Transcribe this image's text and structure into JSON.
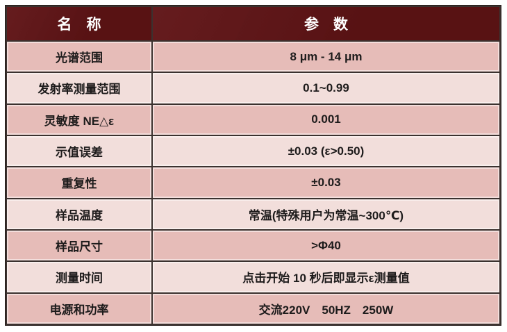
{
  "table": {
    "columns": [
      {
        "label": "名　称"
      },
      {
        "label": "参　数"
      }
    ],
    "rows": [
      {
        "name": "光谱范围",
        "value": "8 μm - 14 μm"
      },
      {
        "name": "发射率测量范围",
        "value": "0.1~0.99"
      },
      {
        "name": "灵敏度 NE△ε",
        "value": "0.001"
      },
      {
        "name": "示值误差",
        "value": "±0.03 (ε>0.50)"
      },
      {
        "name": "重复性",
        "value": "±0.03"
      },
      {
        "name": "样品温度",
        "value": "常温(特殊用户为常温~300℃)"
      },
      {
        "name": "样品尺寸",
        "value": ">Φ40"
      },
      {
        "name": "测量时间",
        "value": "点击开始 10 秒后即显示ε测量值"
      },
      {
        "name": "电源和功率",
        "value": "交流220V　50HZ　250W"
      }
    ],
    "colors": {
      "header_bg": "#5f1315",
      "header_text": "#ffffff",
      "row_dark": "#e6bcb8",
      "row_light": "#f2dedb",
      "cell_border": "#3b322f",
      "body_text": "#1d1b1b",
      "page_bg": "#ffffff"
    }
  }
}
